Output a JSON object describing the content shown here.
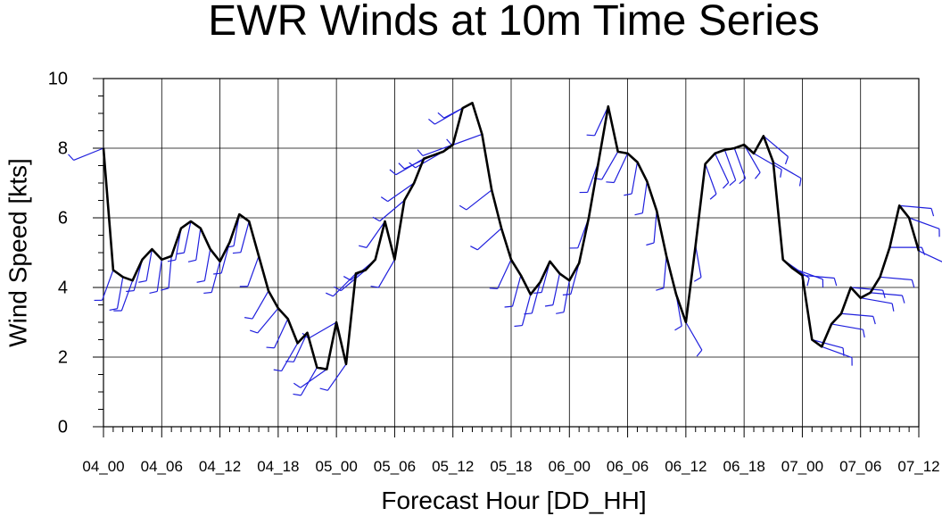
{
  "chart_data": {
    "type": "line",
    "title": "EWR Winds at 10m Time Series",
    "xlabel": "Forecast Hour [DD_HH]",
    "ylabel": "Wind Speed [kts]",
    "ylim": [
      0,
      10
    ],
    "xlim": [
      0,
      84
    ],
    "yticks": [
      0,
      2,
      4,
      6,
      8,
      10
    ],
    "x_tick_positions": [
      0,
      6,
      12,
      18,
      24,
      30,
      36,
      42,
      48,
      54,
      60,
      66,
      72,
      78,
      84
    ],
    "x_tick_labels": [
      "04_00",
      "04_06",
      "04_12",
      "04_18",
      "05_00",
      "05_06",
      "05_12",
      "05_18",
      "06_00",
      "06_06",
      "06_12",
      "06_18",
      "07_00",
      "07_06",
      "07_12"
    ],
    "grid": true,
    "colors": {
      "speed_line": "#000000",
      "barbs": "#1f1fdd",
      "grid": "#000000"
    },
    "series": [
      {
        "x": [
          0,
          1,
          2,
          3,
          4,
          5,
          6,
          7,
          8,
          9,
          10,
          11,
          12,
          13,
          14,
          15,
          16,
          17,
          18,
          19,
          20,
          21,
          22,
          23,
          24,
          25,
          26,
          27,
          28,
          29,
          30,
          31,
          32,
          33,
          34,
          35,
          36,
          37,
          38,
          39,
          40,
          41,
          42,
          43,
          44,
          45,
          46,
          47,
          48,
          49,
          50,
          51,
          52,
          53,
          54,
          55,
          56,
          57,
          58,
          59,
          60,
          61,
          62,
          63,
          64,
          65,
          66,
          67,
          68,
          69,
          70,
          71,
          72,
          73,
          74,
          75,
          76,
          77,
          78,
          79,
          80,
          81,
          82,
          83,
          84
        ],
        "values": [
          8.0,
          4.5,
          4.3,
          4.2,
          4.8,
          5.1,
          4.8,
          4.9,
          5.7,
          5.9,
          5.7,
          5.1,
          4.75,
          5.3,
          6.1,
          5.9,
          4.9,
          3.9,
          3.4,
          3.1,
          2.4,
          2.7,
          1.7,
          1.65,
          3.0,
          1.8,
          4.4,
          4.5,
          4.8,
          5.9,
          4.8,
          6.5,
          7.0,
          7.7,
          7.8,
          7.9,
          8.1,
          9.15,
          9.3,
          8.4,
          6.8,
          5.7,
          4.8,
          4.35,
          3.8,
          4.15,
          4.75,
          4.4,
          4.2,
          4.7,
          6.0,
          7.6,
          9.2,
          7.9,
          7.85,
          7.6,
          7.05,
          6.2,
          4.9,
          3.8,
          3.0,
          5.2,
          7.55,
          7.85,
          7.95,
          8.0,
          8.1,
          7.85,
          8.35,
          7.6,
          4.8,
          4.55,
          4.35,
          2.5,
          2.3,
          2.95,
          3.25,
          4.0,
          3.7,
          3.85,
          4.3,
          5.15,
          6.35,
          6.0,
          5.05
        ]
      }
    ],
    "barbs_u_v_scale_note": "",
    "barbs": [
      {
        "x": 0,
        "dir": 248
      },
      {
        "x": 1,
        "dir": 200
      },
      {
        "x": 2,
        "dir": 190
      },
      {
        "x": 3,
        "dir": 200
      },
      {
        "x": 4,
        "dir": 195
      },
      {
        "x": 5,
        "dir": 190
      },
      {
        "x": 6,
        "dir": 188
      },
      {
        "x": 7,
        "dir": 185
      },
      {
        "x": 8,
        "dir": 190
      },
      {
        "x": 9,
        "dir": 192
      },
      {
        "x": 10,
        "dir": 188
      },
      {
        "x": 11,
        "dir": 190
      },
      {
        "x": 12,
        "dir": 195
      },
      {
        "x": 13,
        "dir": 195
      },
      {
        "x": 14,
        "dir": 190
      },
      {
        "x": 15,
        "dir": 195
      },
      {
        "x": 16,
        "dir": 200
      },
      {
        "x": 17,
        "dir": 210
      },
      {
        "x": 18,
        "dir": 220
      },
      {
        "x": 19,
        "dir": 205
      },
      {
        "x": 20,
        "dir": 210
      },
      {
        "x": 21,
        "dir": 205
      },
      {
        "x": 22,
        "dir": 210
      },
      {
        "x": 23,
        "dir": 235
      },
      {
        "x": 24,
        "dir": 240
      },
      {
        "x": 25,
        "dir": 215
      },
      {
        "x": 26,
        "dir": 225
      },
      {
        "x": 27,
        "dir": 230
      },
      {
        "x": 28,
        "dir": 230
      },
      {
        "x": 29,
        "dir": 215
      },
      {
        "x": 30,
        "dir": 210
      },
      {
        "x": 31,
        "dir": 230
      },
      {
        "x": 32,
        "dir": 235
      },
      {
        "x": 33,
        "dir": 240
      },
      {
        "x": 34,
        "dir": 245
      },
      {
        "x": 35,
        "dir": 240
      },
      {
        "x": 36,
        "dir": 250
      },
      {
        "x": 37,
        "dir": 240
      },
      {
        "x": 38,
        "dir": 242
      },
      {
        "x": 39,
        "dir": 250
      },
      {
        "x": 40,
        "dir": 232
      },
      {
        "x": 41,
        "dir": 228
      },
      {
        "x": 42,
        "dir": 205
      },
      {
        "x": 43,
        "dir": 195
      },
      {
        "x": 44,
        "dir": 195
      },
      {
        "x": 45,
        "dir": 195
      },
      {
        "x": 46,
        "dir": 195
      },
      {
        "x": 47,
        "dir": 192
      },
      {
        "x": 48,
        "dir": 190
      },
      {
        "x": 49,
        "dir": 195
      },
      {
        "x": 50,
        "dir": 200
      },
      {
        "x": 51,
        "dir": 200
      },
      {
        "x": 52,
        "dir": 205
      },
      {
        "x": 53,
        "dir": 210
      },
      {
        "x": 54,
        "dir": 205
      },
      {
        "x": 55,
        "dir": 190
      },
      {
        "x": 56,
        "dir": 188
      },
      {
        "x": 57,
        "dir": 185
      },
      {
        "x": 58,
        "dir": 185
      },
      {
        "x": 59,
        "dir": 170
      },
      {
        "x": 60,
        "dir": 150
      },
      {
        "x": 61,
        "dir": 170
      },
      {
        "x": 62,
        "dir": 160
      },
      {
        "x": 63,
        "dir": 155
      },
      {
        "x": 64,
        "dir": 160
      },
      {
        "x": 65,
        "dir": 160
      },
      {
        "x": 66,
        "dir": 150
      },
      {
        "x": 67,
        "dir": 120
      },
      {
        "x": 68,
        "dir": 130
      },
      {
        "x": 69,
        "dir": 120
      },
      {
        "x": 70,
        "dir": 125
      },
      {
        "x": 71,
        "dir": 110
      },
      {
        "x": 72,
        "dir": 95
      },
      {
        "x": 73,
        "dir": 105
      },
      {
        "x": 74,
        "dir": 110
      },
      {
        "x": 75,
        "dir": 100
      },
      {
        "x": 76,
        "dir": 95
      },
      {
        "x": 77,
        "dir": 95
      },
      {
        "x": 78,
        "dir": 100
      },
      {
        "x": 79,
        "dir": 95
      },
      {
        "x": 80,
        "dir": 95
      },
      {
        "x": 81,
        "dir": 90
      },
      {
        "x": 82,
        "dir": 95
      },
      {
        "x": 83,
        "dir": 110
      },
      {
        "x": 84,
        "dir": 115
      }
    ]
  }
}
